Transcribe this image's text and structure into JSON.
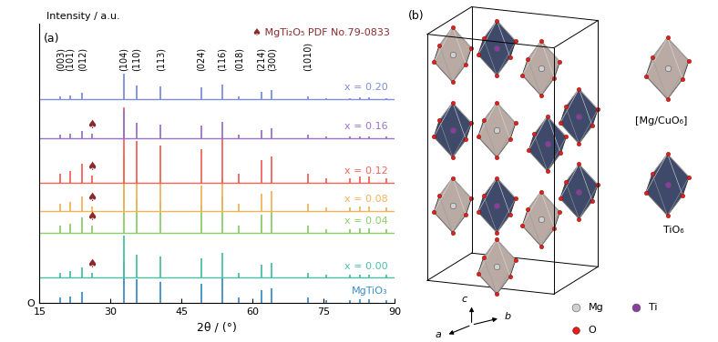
{
  "chart_data": {
    "type": "line",
    "panel_label": "(a)",
    "x_label": "2θ / (°)",
    "y_label": "Intensity / a.u.",
    "xlim": [
      15,
      90
    ],
    "xticks": [
      15,
      30,
      45,
      60,
      75,
      90
    ],
    "ylim": [
      0,
      100
    ],
    "yticks": [
      {
        "value": 0,
        "label": "O"
      }
    ],
    "x": [
      19.4,
      21.4,
      24.0,
      26.0,
      32.8,
      35.5,
      40.6,
      49.1,
      53.5,
      57.1,
      61.8,
      64.0,
      71.6,
      75.5,
      80.5,
      82.6,
      84.5,
      88.2
    ],
    "series": [
      {
        "name": "MgTiO₃",
        "type": "stick",
        "color": "#3a8fc8",
        "baseline": 0,
        "values": [
          1.8,
          2.3,
          3.8,
          null,
          15,
          8.3,
          7.5,
          6.8,
          9,
          1.8,
          4.5,
          5.3,
          1.8,
          0.9,
          0.9,
          1.2,
          1.2,
          0.9
        ]
      },
      {
        "name": "x = 0.00",
        "type": "line",
        "color": "#4bbfa5",
        "baseline": 9,
        "values": [
          10.8,
          11.3,
          12.8,
          10.8,
          24,
          17.3,
          16.5,
          15.8,
          18,
          10.8,
          13.5,
          14.3,
          10.8,
          9.9,
          9.9,
          10.2,
          10.2,
          9.9
        ]
      },
      {
        "name": "x = 0.04",
        "type": "line",
        "color": "#8ccd6a",
        "baseline": 25,
        "values": [
          27.6,
          28.3,
          30.5,
          27.6,
          47,
          37.1,
          36,
          34.9,
          38.2,
          27.6,
          31.6,
          32.7,
          27.6,
          26.3,
          26.3,
          26.8,
          26.8,
          26.3
        ]
      },
      {
        "name": "x = 0.08",
        "type": "line",
        "color": "#f2b35a",
        "baseline": 33,
        "values": [
          35.4,
          36,
          38,
          34.6,
          53,
          44,
          43,
          42,
          45,
          35.4,
          39,
          40,
          35.4,
          34.2,
          34.2,
          34.6,
          34.6,
          34.2
        ]
      },
      {
        "name": "x = 0.12",
        "type": "line",
        "color": "#f0645a",
        "baseline": 43,
        "values": [
          46.2,
          47.1,
          49.8,
          45.7,
          70,
          57.9,
          56.5,
          55.2,
          59.2,
          46.2,
          51.1,
          52.5,
          46.2,
          44.6,
          44.6,
          45.2,
          45.2,
          44.6
        ]
      },
      {
        "name": "x = 0.16",
        "type": "line",
        "color": "#9b72c8",
        "baseline": 59,
        "values": [
          60.2,
          60.5,
          61.5,
          60.5,
          69,
          64.5,
          64,
          63.5,
          65,
          60.2,
          62,
          62.5,
          60.2,
          59.6,
          59.6,
          59.8,
          59.8,
          59.6
        ]
      },
      {
        "name": "x = 0.20",
        "type": "line",
        "color": "#7b8fdc",
        "baseline": 73,
        "values": [
          74.1,
          74.4,
          75.3,
          null,
          82,
          78,
          77.5,
          77.1,
          78.4,
          74.1,
          75.7,
          76.2,
          74.1,
          73.5,
          73.5,
          73.7,
          73.7,
          73.5
        ]
      }
    ],
    "impurity": {
      "x": 26.0,
      "symbol": "♠",
      "label": "♠ MgTi₂O₅ PDF No.79-0833",
      "color": "#8b2a2a"
    },
    "peak_labels": [
      {
        "x": 19.4,
        "label": "(003)"
      },
      {
        "x": 21.4,
        "label": "(101)"
      },
      {
        "x": 24.0,
        "label": "(012)"
      },
      {
        "x": 32.8,
        "label": "(104)"
      },
      {
        "x": 35.5,
        "label": "(110)"
      },
      {
        "x": 40.6,
        "label": "(113)"
      },
      {
        "x": 49.1,
        "label": "(024)"
      },
      {
        "x": 53.5,
        "label": "(116)"
      },
      {
        "x": 57.1,
        "label": "(018)"
      },
      {
        "x": 61.8,
        "label": "(214)"
      },
      {
        "x": 64.0,
        "label": "(300)"
      },
      {
        "x": 71.6,
        "label": "(1010)"
      }
    ]
  },
  "diagram": {
    "panel_label": "(b)",
    "polyhedra": [
      {
        "label": "[Mg/CuO₆]",
        "color": "#b9aaa4"
      },
      {
        "label": "TiO₆",
        "color": "#3f4a6b"
      }
    ],
    "atoms": [
      {
        "label": "Mg",
        "color": "#d0d0d0"
      },
      {
        "label": "Ti",
        "color": "#8a3d9e"
      },
      {
        "label": "O",
        "color": "#e0201b"
      }
    ],
    "axes": [
      "a",
      "b",
      "c"
    ]
  }
}
